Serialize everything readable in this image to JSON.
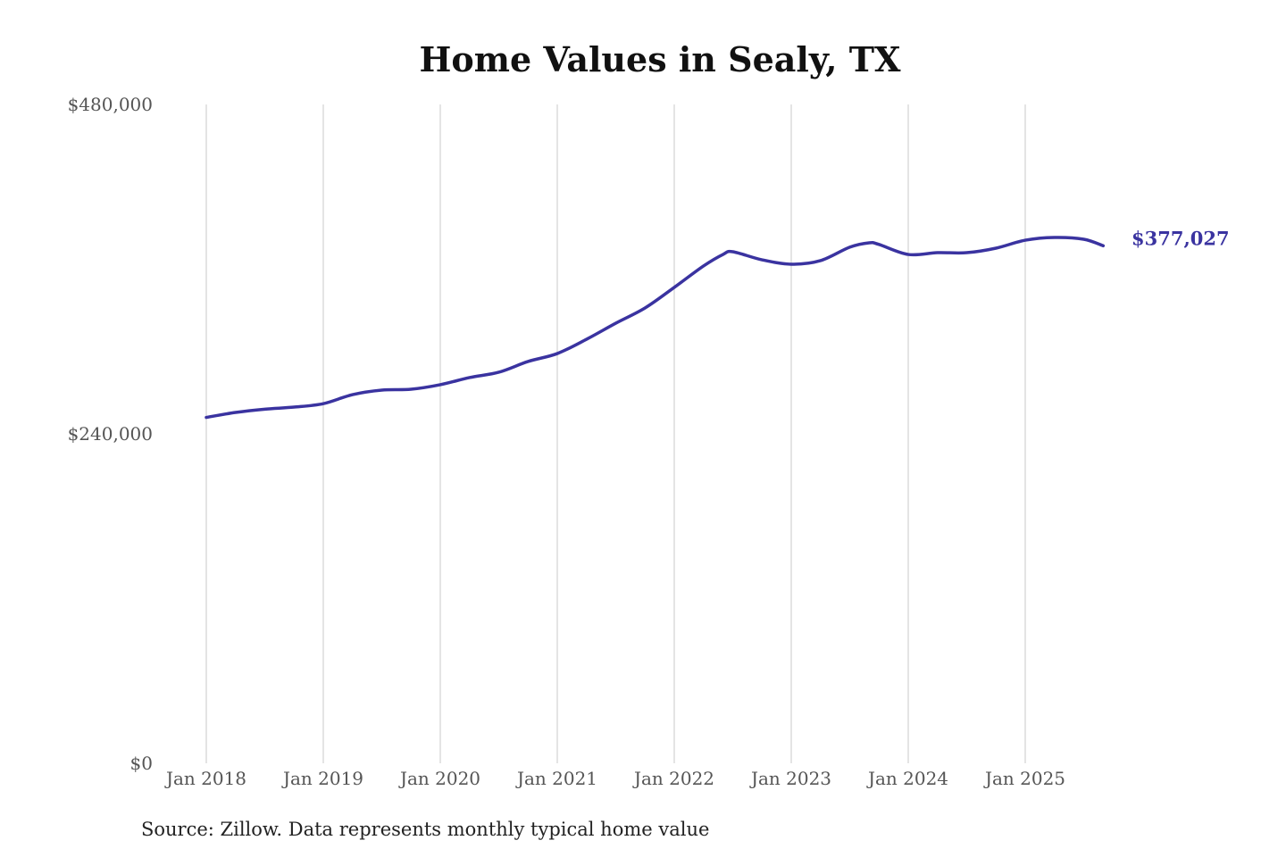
{
  "chart_data": {
    "type": "line",
    "title": "Home Values in Sealy, TX",
    "source_note": "Source: Zillow. Data represents monthly typical home value",
    "ylim": [
      0,
      480000
    ],
    "y_ticks": [
      "$0",
      "$240,000",
      "$480,000"
    ],
    "y_tick_values": [
      0,
      240000,
      480000
    ],
    "x_ticks": [
      "Jan 2018",
      "Jan 2019",
      "Jan 2020",
      "Jan 2021",
      "Jan 2022",
      "Jan 2023",
      "Jan 2024",
      "Jan 2025"
    ],
    "x_tick_values": [
      "2018-01",
      "2019-01",
      "2020-01",
      "2021-01",
      "2022-01",
      "2023-01",
      "2024-01",
      "2025-01"
    ],
    "grid": "vertical",
    "line_color": "#3a33a0",
    "end_label": "$377,027",
    "series": [
      {
        "x": [
          "2018-01",
          "2018-04",
          "2018-07",
          "2018-10",
          "2019-01",
          "2019-04",
          "2019-07",
          "2019-10",
          "2020-01",
          "2020-04",
          "2020-07",
          "2020-10",
          "2021-01",
          "2021-04",
          "2021-07",
          "2021-10",
          "2022-01",
          "2022-04",
          "2022-06",
          "2022-07",
          "2022-10",
          "2023-01",
          "2023-04",
          "2023-07",
          "2023-09",
          "2023-10",
          "2024-01",
          "2024-04",
          "2024-07",
          "2024-10",
          "2025-01",
          "2025-04",
          "2025-07",
          "2025-09"
        ],
        "values": [
          252000,
          255600,
          258000,
          259500,
          262000,
          268600,
          271900,
          272500,
          275800,
          281000,
          284900,
          292700,
          298500,
          308900,
          320600,
          331700,
          346700,
          362300,
          370700,
          372700,
          366800,
          363600,
          366200,
          376000,
          379200,
          378000,
          370700,
          372000,
          372000,
          375300,
          381100,
          383100,
          381800,
          377027
        ]
      }
    ]
  }
}
